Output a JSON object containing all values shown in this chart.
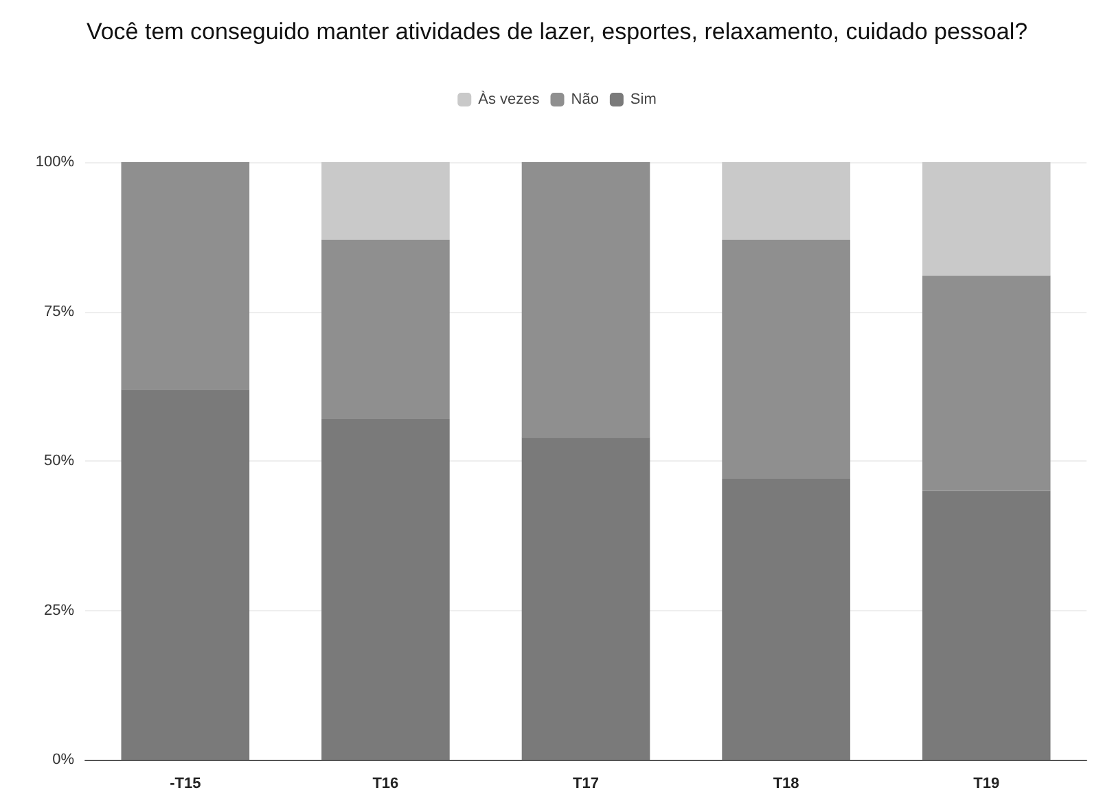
{
  "chart_data": {
    "type": "bar",
    "title": "Você tem conseguido manter atividades de lazer, esportes, relaxamento, cuidado pessoal?",
    "categories": [
      "-T15",
      "T16",
      "T17",
      "T18",
      "T19"
    ],
    "stacked": true,
    "series": [
      {
        "name": "Sim",
        "color": "#7a7a7a",
        "values": [
          62,
          57,
          54,
          47,
          45
        ]
      },
      {
        "name": "Não",
        "color": "#8f8f8f",
        "values": [
          38,
          30,
          46,
          40,
          36
        ]
      },
      {
        "name": "Às vezes",
        "color": "#c9c9c9",
        "values": [
          0,
          13,
          0,
          13,
          19
        ]
      }
    ],
    "ylim": [
      0,
      100
    ],
    "yticks": [
      {
        "value": 0,
        "label": "0%"
      },
      {
        "value": 25,
        "label": "25%"
      },
      {
        "value": 50,
        "label": "50%"
      },
      {
        "value": 75,
        "label": "75%"
      },
      {
        "value": 100,
        "label": "100%"
      }
    ],
    "grid": "y",
    "legend": "top"
  }
}
